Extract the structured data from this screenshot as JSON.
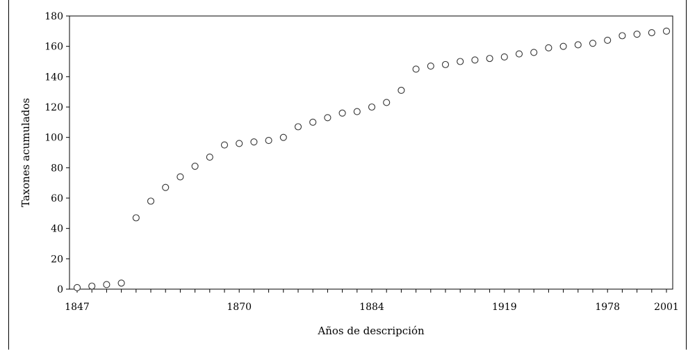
{
  "chart_data": {
    "type": "scatter",
    "xlabel": "Años de descripción",
    "ylabel": "Taxones acumulados",
    "ylim": [
      0,
      180
    ],
    "yticks": [
      0,
      20,
      40,
      60,
      80,
      100,
      120,
      140,
      160,
      180
    ],
    "x_tick_labels": [
      {
        "index": 0,
        "label": "1847"
      },
      {
        "index": 11,
        "label": "1870"
      },
      {
        "index": 20,
        "label": "1884"
      },
      {
        "index": 29,
        "label": "1919"
      },
      {
        "index": 36,
        "label": "1978"
      },
      {
        "index": 40,
        "label": "2001"
      }
    ],
    "grid": false,
    "marker": "open-circle",
    "values": [
      1,
      2,
      3,
      4,
      47,
      58,
      67,
      74,
      81,
      87,
      95,
      96,
      97,
      98,
      100,
      107,
      110,
      113,
      116,
      117,
      120,
      123,
      131,
      145,
      147,
      148,
      150,
      151,
      152,
      153,
      155,
      156,
      159,
      160,
      161,
      162,
      164,
      167,
      168,
      169,
      170
    ]
  }
}
